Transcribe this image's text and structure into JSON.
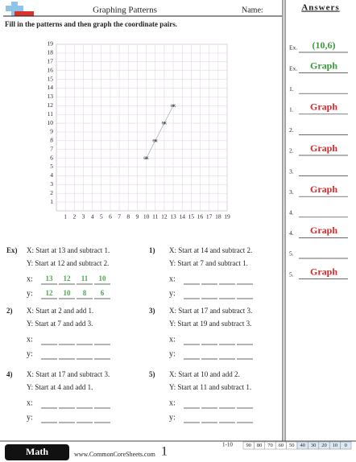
{
  "header": {
    "title": "Graphing Patterns",
    "name_label": "Name:"
  },
  "instructions": "Fill in the patterns and then graph the coordinate pairs.",
  "graph": {
    "xlim": [
      0,
      19
    ],
    "ylim": [
      0,
      19
    ],
    "xticks": [
      1,
      2,
      3,
      4,
      5,
      6,
      7,
      8,
      9,
      10,
      11,
      12,
      13,
      14,
      15,
      16,
      17,
      18,
      19
    ],
    "yticks": [
      1,
      2,
      3,
      4,
      5,
      6,
      7,
      8,
      9,
      10,
      11,
      12,
      13,
      14,
      15,
      16,
      17,
      18,
      19
    ],
    "x": [
      10,
      11,
      12,
      13
    ],
    "y": [
      6,
      8,
      10,
      12
    ],
    "point_label": "ex"
  },
  "problems": [
    {
      "label": "Ex)",
      "x_rule": "X: Start at 13 and subtract 1.",
      "y_rule": "Y: Start at 12 and subtract 2.",
      "x_label": "x:",
      "y_label": "y:",
      "x_values": [
        "13",
        "12",
        "11",
        "10"
      ],
      "y_values": [
        "12",
        "10",
        "8",
        "6"
      ]
    },
    {
      "label": "1)",
      "x_rule": "X: Start at 14 and subtract 2.",
      "y_rule": "Y: Start at 7 and subtract 1.",
      "x_label": "x:",
      "y_label": "y:"
    },
    {
      "label": "2)",
      "x_rule": "X: Start at 2 and add 1.",
      "y_rule": "Y: Start at 7 and add 3.",
      "x_label": "x:",
      "y_label": "y:"
    },
    {
      "label": "3)",
      "x_rule": "X: Start at 17 and subtract 3.",
      "y_rule": "Y: Start at 19 and subtract 3.",
      "x_label": "x:",
      "y_label": "y:"
    },
    {
      "label": "4)",
      "x_rule": "X: Start at 17 and subtract 3.",
      "y_rule": "Y: Start at 4 and add 1.",
      "x_label": "x:",
      "y_label": "y:"
    },
    {
      "label": "5)",
      "x_rule": "X: Start at 10 and add 2.",
      "y_rule": "Y: Start at 11 and subtract 1.",
      "x_label": "x:",
      "y_label": "y:"
    }
  ],
  "answers": {
    "title": "Answers",
    "items": [
      {
        "label": "Ex.",
        "answer": "(10,6)",
        "color": "#3a9a3a"
      },
      {
        "label": "Ex.",
        "answer": "Graph",
        "color": "#3a9a3a"
      },
      {
        "label": "1."
      },
      {
        "label": "1.",
        "answer": "Graph",
        "color": "#d42a2a"
      },
      {
        "label": "2."
      },
      {
        "label": "2.",
        "answer": "Graph",
        "color": "#d42a2a"
      },
      {
        "label": "3."
      },
      {
        "label": "3.",
        "answer": "Graph",
        "color": "#d42a2a"
      },
      {
        "label": "4."
      },
      {
        "label": "4.",
        "answer": "Graph",
        "color": "#d42a2a"
      },
      {
        "label": "5."
      },
      {
        "label": "5.",
        "answer": "Graph",
        "color": "#d42a2a"
      }
    ]
  },
  "footer": {
    "brand": "Math",
    "site": "www.CommonCoreSheets.com",
    "page": "1",
    "score_range": "1-10",
    "scores": [
      90,
      80,
      70,
      60,
      50,
      40,
      30,
      20,
      10,
      0
    ]
  }
}
